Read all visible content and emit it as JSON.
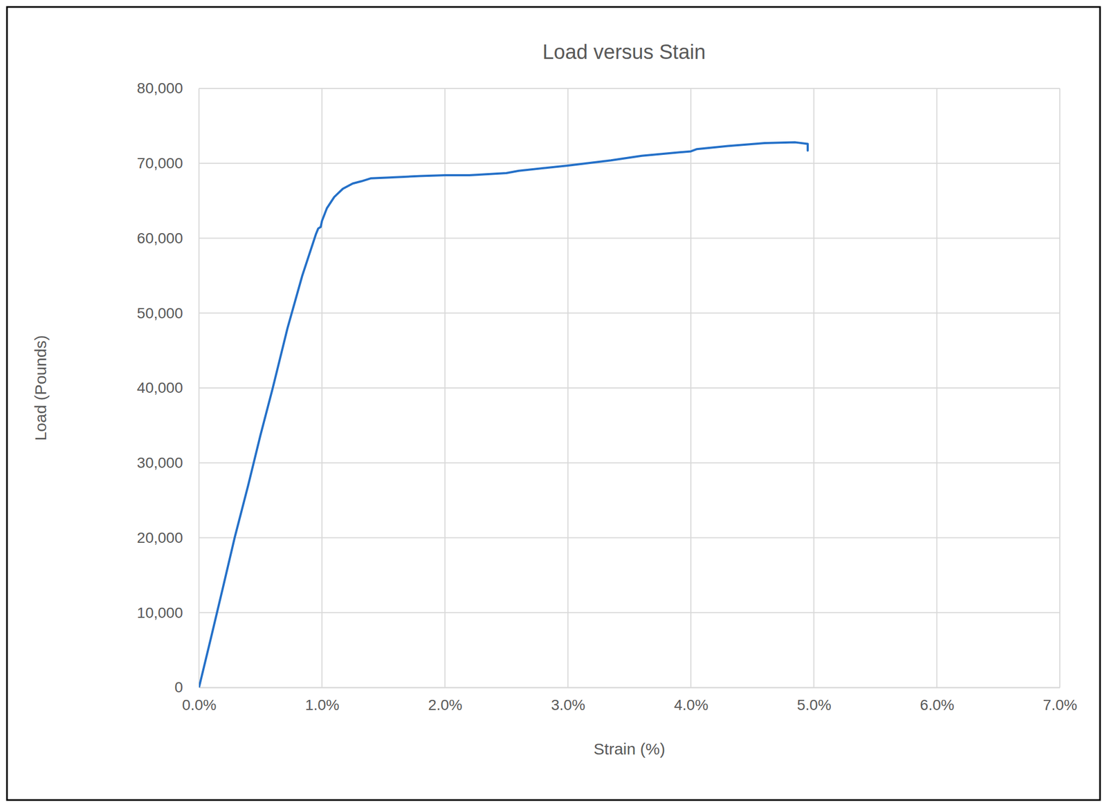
{
  "chart_data": {
    "type": "line",
    "title": "Load versus Stain",
    "x_label": "Strain (%)",
    "y_label": "Load (Pounds)",
    "x": [
      0,
      0.1,
      0.2,
      0.29,
      0.4,
      0.5,
      0.6,
      0.72,
      0.84,
      0.95,
      0.97,
      0.99,
      1.0,
      1.04,
      1.1,
      1.17,
      1.25,
      1.32,
      1.4,
      1.55,
      1.8,
      2.0,
      2.2,
      2.5,
      2.6,
      3.0,
      3.35,
      3.6,
      4.0,
      4.05,
      4.3,
      4.6,
      4.85,
      4.95,
      4.95
    ],
    "values": [
      0,
      6800,
      13700,
      20000,
      27000,
      33700,
      40000,
      48000,
      55000,
      60500,
      61300,
      61500,
      62300,
      64000,
      65500,
      66600,
      67300,
      67600,
      68000,
      68100,
      68300,
      68400,
      68400,
      68700,
      69000,
      69700,
      70400,
      71000,
      71600,
      71900,
      72300,
      72700,
      72800,
      72600,
      71700
    ],
    "color": "#2470c8",
    "xlim": [
      0,
      7
    ],
    "xticks": [
      {
        "value": 0,
        "label": "0.0%"
      },
      {
        "value": 1,
        "label": "1.0%"
      },
      {
        "value": 2,
        "label": "2.0%"
      },
      {
        "value": 3,
        "label": "3.0%"
      },
      {
        "value": 4,
        "label": "4.0%"
      },
      {
        "value": 5,
        "label": "5.0%"
      },
      {
        "value": 6,
        "label": "6.0%"
      },
      {
        "value": 7,
        "label": "7.0%"
      }
    ],
    "ylim": [
      0,
      80000
    ],
    "yticks": [
      0,
      {
        "value": 10000,
        "label": "10,000"
      },
      {
        "value": 20000,
        "label": "20,000"
      },
      {
        "value": 30000,
        "label": "30,000"
      },
      {
        "value": 40000,
        "label": "40,000"
      },
      {
        "value": 50000,
        "label": "50,000"
      },
      {
        "value": 60000,
        "label": "60,000"
      },
      {
        "value": 70000,
        "label": "70,000"
      },
      {
        "value": 80000,
        "label": "80,000"
      }
    ],
    "grid": true
  }
}
